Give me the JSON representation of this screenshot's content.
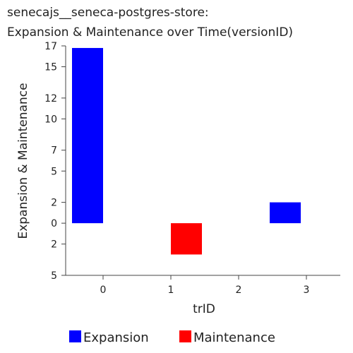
{
  "chart_data": {
    "type": "bar",
    "title_line1": "senecajs__seneca-postgres-store:",
    "title_line2": "Expansion & Maintenance over Time(versionID)",
    "xlabel": "trID",
    "ylabel": "Expansion & Maintenance",
    "categories": [
      "0",
      "1",
      "2",
      "3"
    ],
    "y_ticks": [
      {
        "value": 17,
        "label": "17"
      },
      {
        "value": 15,
        "label": "15"
      },
      {
        "value": 12,
        "label": "12"
      },
      {
        "value": 10,
        "label": "10"
      },
      {
        "value": 7,
        "label": "7"
      },
      {
        "value": 5,
        "label": "5"
      },
      {
        "value": 2,
        "label": "2"
      },
      {
        "value": 0,
        "label": "0"
      },
      {
        "value": -2,
        "label": "2"
      },
      {
        "value": -5,
        "label": "5"
      }
    ],
    "ylim": [
      -5,
      17
    ],
    "series": [
      {
        "name": "Expansion",
        "color": "#0000ff",
        "values": [
          16.8,
          0,
          0,
          2
        ]
      },
      {
        "name": "Maintenance",
        "color": "#ff0000",
        "values": [
          0,
          -3,
          0,
          0
        ]
      }
    ],
    "legend_position": "bottom",
    "grid": false
  }
}
